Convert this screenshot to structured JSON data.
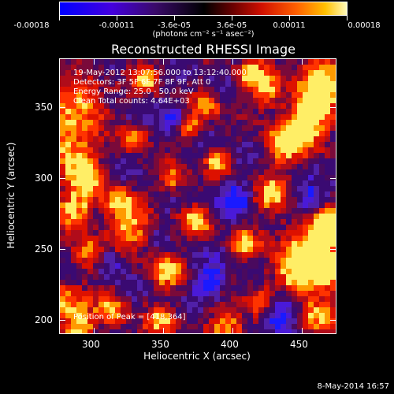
{
  "colorbar": {
    "tick_labels": [
      "-0.00018",
      "-0.00011",
      "-3.6e-05",
      "3.6e-05",
      "0.00011",
      "0.00018"
    ],
    "units": "(photons cm⁻² s⁻¹ asec⁻²)",
    "colors": [
      "#0000ff",
      "#5a00c8",
      "#3a0a6a",
      "#000000",
      "#5a0000",
      "#cc1100",
      "#ff5500",
      "#ffbb00",
      "#ffffaa"
    ]
  },
  "title": "Reconstructed RHESSI Image",
  "annotations": {
    "time_range": "19-May-2012 13:07:56.000 to 13:12:40.000",
    "detectors": "Detectors: 3F 5F 6F 7F 8F 9F, Att 0",
    "energy": "Energy Range: 25.0 - 50.0 keV",
    "clean": "Clean    Total counts: 4.64E+03",
    "peak": "Position of Peak = [418,364]"
  },
  "axes": {
    "xlabel": "Heliocentric X (arcsec)",
    "ylabel": "Heliocentric Y (arcsec)",
    "x_ticks": [
      "300",
      "350",
      "400",
      "450"
    ],
    "y_ticks": [
      "200",
      "250",
      "300",
      "350"
    ],
    "xlim": [
      276,
      468
    ],
    "ylim": [
      191,
      383
    ]
  },
  "timestamp": "8-May-2014 16:57"
}
